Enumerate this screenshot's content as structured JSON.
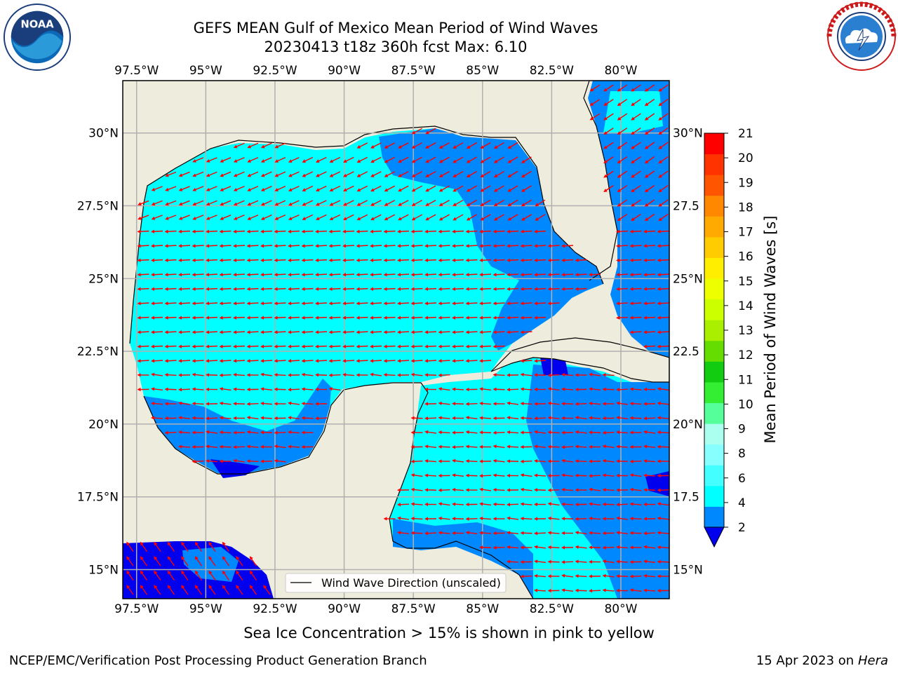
{
  "header": {
    "title_line1": "GEFS MEAN Gulf of Mexico Mean Period of Wind Waves",
    "title_line2": "20230413 t18z 360h fcst   Max: 6.10"
  },
  "logos": {
    "left": "NOAA",
    "left_ring_text": "NATIONAL OCEANIC AND ATMOSPHERIC ADMINISTRATION · U.S. DEPARTMENT OF COMMERCE",
    "right_ring_text": "NATIONAL WEATHER SERVICE"
  },
  "map": {
    "lon_ticks": [
      "97.5°W",
      "95°W",
      "92.5°W",
      "90°W",
      "87.5°W",
      "85°W",
      "82.5°W",
      "80°W"
    ],
    "lon_values": [
      -97.5,
      -95,
      -92.5,
      -90,
      -87.5,
      -85,
      -82.5,
      -80
    ],
    "lat_ticks": [
      "30°N",
      "27.5°N",
      "25°N",
      "22.5°N",
      "20°N",
      "17.5°N",
      "15°N"
    ],
    "lat_values": [
      30,
      27.5,
      25,
      22.5,
      20,
      17.5,
      15
    ],
    "right_lat_ticks": [
      "30°N",
      "27.5",
      "25°N",
      "22.5",
      "20°N",
      "17.5",
      "15°N"
    ],
    "extent": {
      "lon_min": -98,
      "lon_max": -78.25,
      "lat_min": 14,
      "lat_max": 31.8
    },
    "legend_label": "Wind Wave Direction (unscaled)",
    "colors": {
      "land": "#eeecdc",
      "arrows": "#ff0000",
      "grid": "#b0b0b0"
    }
  },
  "colorbar": {
    "label": "Mean Period of Wind Waves [s]",
    "ticks": [
      "2",
      "4",
      "6",
      "8",
      "9",
      "10",
      "11",
      "12",
      "13",
      "14",
      "15",
      "16",
      "17",
      "18",
      "19",
      "20",
      "21"
    ],
    "colors": [
      "#0088ff",
      "#00ffff",
      "#44ffff",
      "#88ffff",
      "#aaffee",
      "#55ff99",
      "#33ee33",
      "#11cc11",
      "#66dd00",
      "#aaee00",
      "#ccff00",
      "#eeff00",
      "#ffee00",
      "#ffcc00",
      "#ffaa00",
      "#ff8800",
      "#ff5500",
      "#ff3300",
      "#ff0000"
    ],
    "extend_color": "#0000ee"
  },
  "footer": {
    "caption": "Sea Ice Concentration > 15% is shown in pink to yellow",
    "credit": "NCEP/EMC/Verification Post Processing Product Generation Branch",
    "date": "15 Apr 2023 on",
    "host": "Hera"
  }
}
